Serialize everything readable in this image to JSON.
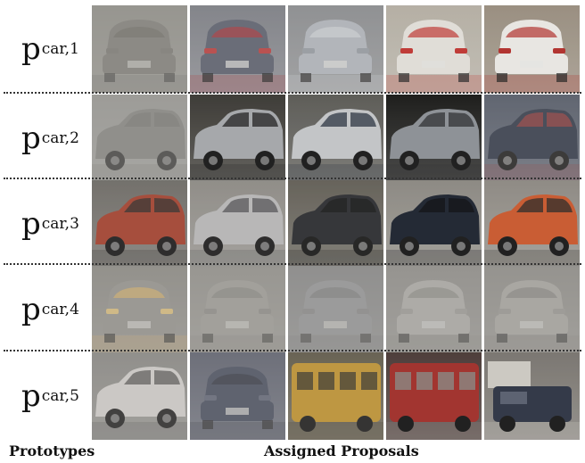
{
  "rows": [
    {
      "label": "p",
      "sub": "car,1",
      "thumbs": [
        {
          "bg": "#8e8d87",
          "body": "#75746f",
          "accent": "#55544f",
          "light": "#6d6a66",
          "view": "rear",
          "fog": 0.55
        },
        {
          "bg": "#7d8088",
          "body": "#5d6271",
          "accent": "#b3343a",
          "light": "#c04040",
          "view": "rear",
          "fog": 0.2
        },
        {
          "bg": "#8b8e92",
          "body": "#b9bec6",
          "accent": "#dcdfe4",
          "light": "#9aa0a8",
          "view": "rear",
          "fog": 0.25
        },
        {
          "bg": "#b8b2a7",
          "body": "#e8e5df",
          "accent": "#c5322e",
          "light": "#c5322e",
          "view": "rear",
          "fog": 0.1
        },
        {
          "bg": "#9a8f80",
          "body": "#eceae6",
          "accent": "#b4302c",
          "light": "#b4302c",
          "view": "rear",
          "fog": 0.05
        }
      ]
    },
    {
      "label": "p",
      "sub": "car,2",
      "thumbs": [
        {
          "bg": "#9c9c98",
          "body": "#83837f",
          "accent": "#6d6d69",
          "light": "#77776f",
          "view": "side",
          "fog": 0.5
        },
        {
          "bg": "#3a3833",
          "body": "#a7a9ac",
          "accent": "#1f1f1f",
          "light": "#8f9295",
          "view": "side",
          "fog": 0.05
        },
        {
          "bg": "#5b5a55",
          "body": "#c6c8ca",
          "accent": "#2a3340",
          "light": "#a2a5a8",
          "view": "side",
          "fog": 0.05
        },
        {
          "bg": "#191917",
          "body": "#8e9297",
          "accent": "#2c2d30",
          "light": "#6f7378",
          "view": "side",
          "fog": 0.05
        },
        {
          "bg": "#4c5464",
          "body": "#2e3647",
          "accent": "#9b3a3a",
          "light": "#545c6c",
          "view": "side",
          "fog": 0.25
        }
      ]
    },
    {
      "label": "p",
      "sub": "car,3",
      "thumbs": [
        {
          "bg": "#6c6a64",
          "body": "#a7412d",
          "accent": "#2a2a28",
          "light": "#7f3526",
          "view": "side",
          "fog": 0.15
        },
        {
          "bg": "#8e8c86",
          "body": "#bcbdbd",
          "accent": "#4d4e50",
          "light": "#9fa0a0",
          "view": "side",
          "fog": 0.15
        },
        {
          "bg": "#615d55",
          "body": "#2b2c30",
          "accent": "#171718",
          "light": "#3a3b40",
          "view": "side",
          "fog": 0.1
        },
        {
          "bg": "#8d8a83",
          "body": "#1e2430",
          "accent": "#0e0f12",
          "light": "#2f3645",
          "view": "side",
          "fog": 0.05
        },
        {
          "bg": "#8f8b84",
          "body": "#cc5a2f",
          "accent": "#2b2a28",
          "light": "#a84724",
          "view": "side",
          "fog": 0.05
        }
      ]
    },
    {
      "label": "p",
      "sub": "car,4",
      "thumbs": [
        {
          "bg": "#8b8983",
          "body": "#9a9892",
          "accent": "#f3c060",
          "light": "#f7d27a",
          "view": "front",
          "fog": 0.45
        },
        {
          "bg": "#918f8b",
          "body": "#a7a5a1",
          "accent": "#7f7d79",
          "light": "#8d8b87",
          "view": "front",
          "fog": 0.55
        },
        {
          "bg": "#7f8084",
          "body": "#9799a0",
          "accent": "#6f7075",
          "light": "#85868b",
          "view": "front",
          "fog": 0.55
        },
        {
          "bg": "#8e8c88",
          "body": "#bdbbb7",
          "accent": "#88867f",
          "light": "#a5a39f",
          "view": "front",
          "fog": 0.5
        },
        {
          "bg": "#8d8b86",
          "body": "#b4b2ad",
          "accent": "#7e7c77",
          "light": "#9f9d98",
          "view": "front",
          "fog": 0.5
        }
      ]
    },
    {
      "label": "p",
      "sub": "car,5",
      "thumbs": [
        {
          "bg": "#8b8a86",
          "body": "#dedcd8",
          "accent": "#4b4b4a",
          "light": "#bfbdb9",
          "view": "side",
          "fog": 0.3
        },
        {
          "bg": "#54596a",
          "body": "#3e4559",
          "accent": "#232834",
          "light": "#5c6377",
          "view": "rear",
          "fog": 0.35
        },
        {
          "bg": "#5c5644",
          "body": "#c6962d",
          "accent": "#3a3424",
          "light": "#a47c25",
          "view": "bus",
          "fog": 0.2
        },
        {
          "bg": "#4a3a36",
          "body": "#a3302b",
          "accent": "#8a8883",
          "light": "#c6403a",
          "view": "bus",
          "fog": 0.05
        },
        {
          "bg": "#7a7670",
          "body": "#2f3545",
          "accent": "#cfccc5",
          "light": "#5a6070",
          "view": "truck",
          "fog": 0.05
        }
      ]
    }
  ],
  "captions": {
    "prototypes": "Prototypes",
    "assigned": "Assigned Proposals"
  }
}
